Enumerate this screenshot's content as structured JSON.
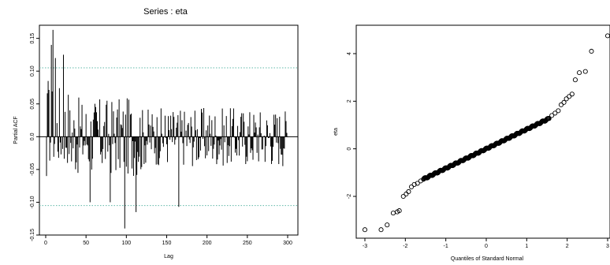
{
  "chart_data": [
    {
      "type": "bar",
      "title": "Series : eta",
      "xlabel": "Lag",
      "ylabel": "Partial ACF",
      "xlim": [
        0,
        300
      ],
      "ylim": [
        -0.15,
        0.17
      ],
      "xticks": [
        "0",
        "50",
        "100",
        "150",
        "200",
        "250",
        "300"
      ],
      "yticks": [
        "-0.15",
        "-0.10",
        "-0.05",
        "0.0",
        "0.05",
        "0.10",
        "0.15"
      ],
      "confidence_band": 0.105,
      "bar_color": "#000000",
      "band_color": "#5fb8a8",
      "notable_lags": [
        {
          "lag": 1,
          "value": -0.06
        },
        {
          "lag": 3,
          "value": 0.085
        },
        {
          "lag": 7,
          "value": 0.14
        },
        {
          "lag": 9,
          "value": 0.163
        },
        {
          "lag": 12,
          "value": 0.12
        },
        {
          "lag": 22,
          "value": 0.125
        },
        {
          "lag": 55,
          "value": -0.1
        },
        {
          "lag": 80,
          "value": -0.1
        },
        {
          "lag": 98,
          "value": -0.14
        },
        {
          "lag": 112,
          "value": -0.115
        },
        {
          "lag": 165,
          "value": -0.107
        }
      ]
    },
    {
      "type": "scatter",
      "title": "",
      "xlabel": "Quantiles of Standard Normal",
      "ylabel": "eta",
      "xlim": [
        -3,
        3
      ],
      "ylim": [
        -3.5,
        4.9
      ],
      "xticks": [
        "-3",
        "-2",
        "-1",
        "0",
        "1",
        "2",
        "3"
      ],
      "yticks": [
        "-2",
        "0",
        "2",
        "4"
      ],
      "marker": "open-circle",
      "points": [
        {
          "x": -3.0,
          "y": -3.4
        },
        {
          "x": -2.6,
          "y": -3.4
        },
        {
          "x": -2.45,
          "y": -3.2
        },
        {
          "x": -2.3,
          "y": -2.7
        },
        {
          "x": -2.2,
          "y": -2.65
        },
        {
          "x": -2.15,
          "y": -2.6
        },
        {
          "x": -2.05,
          "y": -2.0
        },
        {
          "x": -1.98,
          "y": -1.9
        },
        {
          "x": -1.92,
          "y": -1.8
        },
        {
          "x": -1.85,
          "y": -1.6
        },
        {
          "x": -1.78,
          "y": -1.5
        },
        {
          "x": -1.7,
          "y": -1.45
        },
        {
          "x": -1.62,
          "y": -1.35
        },
        {
          "x": -1.55,
          "y": -1.28
        },
        {
          "x": 1.55,
          "y": 1.28
        },
        {
          "x": 1.62,
          "y": 1.4
        },
        {
          "x": 1.7,
          "y": 1.5
        },
        {
          "x": 1.78,
          "y": 1.6
        },
        {
          "x": 1.85,
          "y": 1.85
        },
        {
          "x": 1.92,
          "y": 1.95
        },
        {
          "x": 1.98,
          "y": 2.1
        },
        {
          "x": 2.05,
          "y": 2.2
        },
        {
          "x": 2.12,
          "y": 2.3
        },
        {
          "x": 2.2,
          "y": 2.9
        },
        {
          "x": 2.3,
          "y": 3.2
        },
        {
          "x": 2.45,
          "y": 3.25
        },
        {
          "x": 2.6,
          "y": 4.1
        },
        {
          "x": 3.0,
          "y": 4.75
        }
      ]
    }
  ]
}
